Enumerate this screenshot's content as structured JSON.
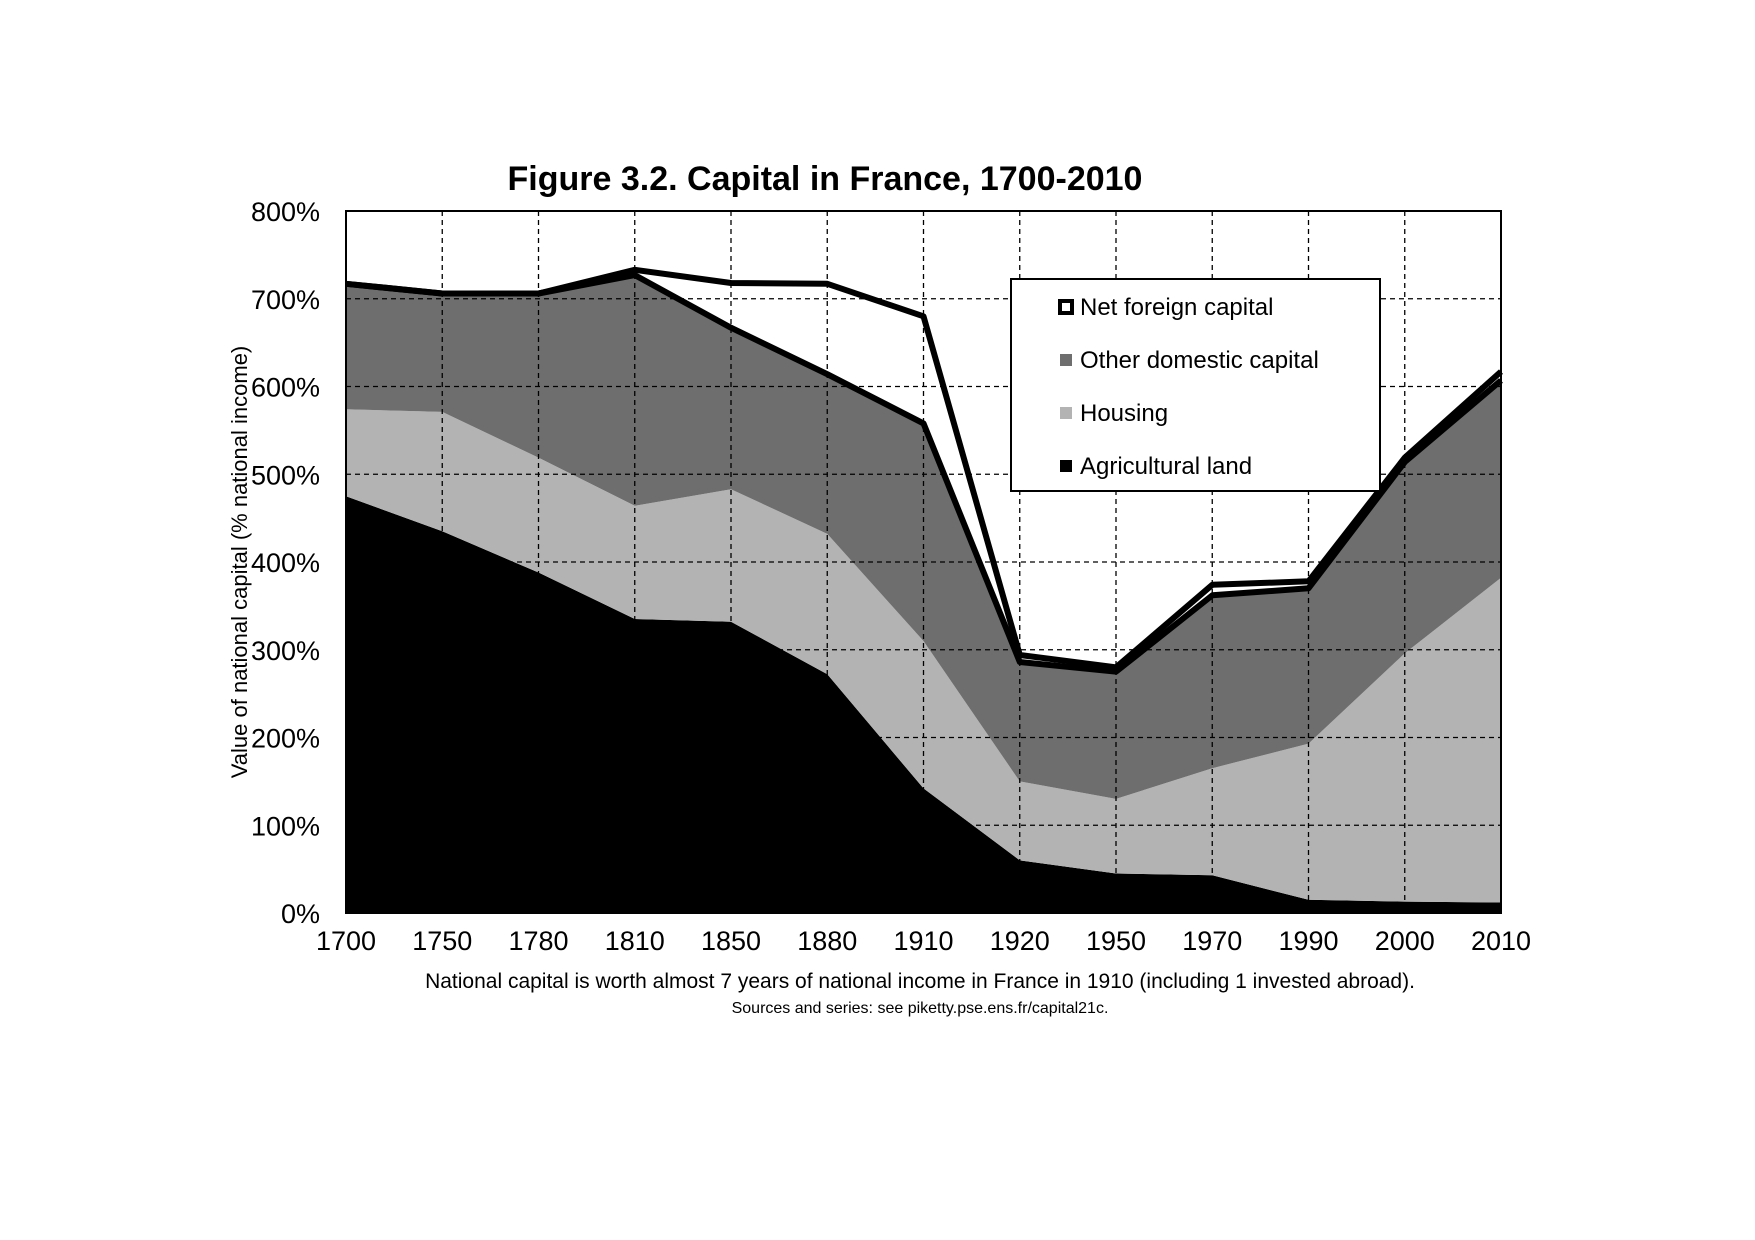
{
  "chart_data": {
    "type": "area",
    "title": "Figure 3.2. Capital in France, 1700-2010",
    "ylabel": "Value of national capital (% national income)",
    "xlabel": "",
    "caption": "National capital is worth almost 7 years of national income in France in 1910 (including 1 invested abroad).",
    "source": "Sources and series: see piketty.pse.ens.fr/capital21c.",
    "x": [
      "1700",
      "1750",
      "1780",
      "1810",
      "1850",
      "1880",
      "1910",
      "1920",
      "1950",
      "1970",
      "1990",
      "2000",
      "2010"
    ],
    "ylim": [
      0,
      800
    ],
    "yticks": [
      "0%",
      "100%",
      "200%",
      "300%",
      "400%",
      "500%",
      "600%",
      "700%",
      "800%"
    ],
    "stacked": true,
    "series": [
      {
        "name": "Agricultural land",
        "color": "#000000",
        "values": [
          475,
          435,
          388,
          335,
          332,
          272,
          142,
          60,
          45,
          43,
          15,
          13,
          12
        ]
      },
      {
        "name": "Housing",
        "color": "#b3b3b3",
        "values": [
          99,
          136,
          131,
          129,
          151,
          160,
          168,
          90,
          85,
          122,
          178,
          283,
          370
        ]
      },
      {
        "name": "Other domestic capital",
        "color": "#6e6e6e",
        "values": [
          143,
          135,
          187,
          263,
          184,
          182,
          248,
          136,
          145,
          197,
          177,
          218,
          225
        ]
      },
      {
        "name": "Net foreign capital",
        "color": "#ffffff",
        "values": [
          0,
          0,
          0,
          6,
          51,
          103,
          122,
          8,
          5,
          12,
          8,
          5,
          10
        ]
      }
    ],
    "legend": [
      "Net foreign capital",
      "Other domestic capital",
      "Housing",
      "Agricultural land"
    ],
    "legend_position": "top-right",
    "grid": true
  }
}
